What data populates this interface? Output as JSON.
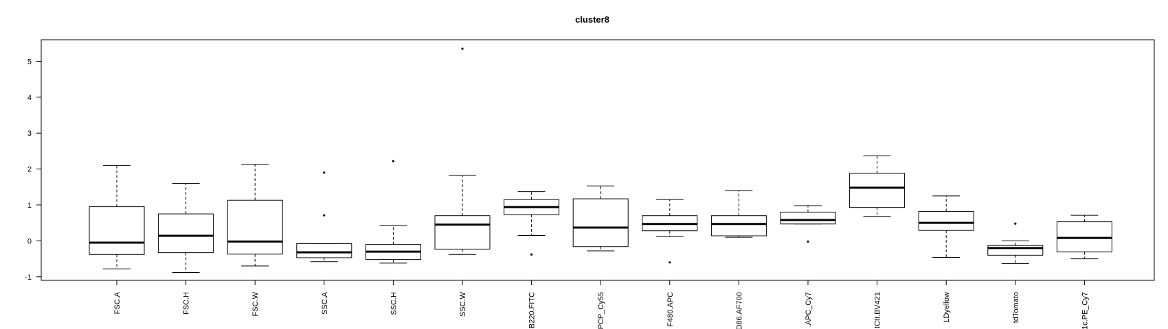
{
  "chart_data": {
    "type": "boxplot",
    "title": "cluster8",
    "xlabel": "",
    "ylabel": "",
    "ylim": [
      -1.1,
      5.6
    ],
    "yticks": [
      -1,
      0,
      1,
      2,
      3,
      4,
      5
    ],
    "grid": false,
    "categories": [
      "FSC.A",
      "FSC.H",
      "FSC.W",
      "SSC.A",
      "SSC.H",
      "SSC.W",
      "B220.FITC",
      "PCP_Cy55",
      "F480.APC",
      "D86.AF700",
      ".APC_Cy7",
      "ICII.BV421",
      "LDyellow",
      "tdTomato",
      "1c.PE_Cy7"
    ],
    "boxes": [
      {
        "whisker_low": -0.78,
        "q1": -0.38,
        "median": -0.05,
        "q3": 0.95,
        "whisker_high": 2.1,
        "outliers": []
      },
      {
        "whisker_low": -0.88,
        "q1": -0.33,
        "median": 0.14,
        "q3": 0.75,
        "whisker_high": 1.6,
        "outliers": []
      },
      {
        "whisker_low": -0.7,
        "q1": -0.37,
        "median": -0.02,
        "q3": 1.13,
        "whisker_high": 2.13,
        "outliers": []
      },
      {
        "whisker_low": -0.58,
        "q1": -0.47,
        "median": -0.32,
        "q3": -0.08,
        "whisker_high": -0.08,
        "outliers": [
          0.71,
          1.9
        ]
      },
      {
        "whisker_low": -0.62,
        "q1": -0.52,
        "median": -0.3,
        "q3": -0.1,
        "whisker_high": 0.42,
        "outliers": [
          2.22
        ]
      },
      {
        "whisker_low": -0.38,
        "q1": -0.23,
        "median": 0.45,
        "q3": 0.7,
        "whisker_high": 1.82,
        "outliers": [
          5.35
        ]
      },
      {
        "whisker_low": 0.15,
        "q1": 0.73,
        "median": 0.94,
        "q3": 1.15,
        "whisker_high": 1.37,
        "outliers": [
          -0.38
        ]
      },
      {
        "whisker_low": -0.28,
        "q1": -0.16,
        "median": 0.37,
        "q3": 1.17,
        "whisker_high": 1.53,
        "outliers": []
      },
      {
        "whisker_low": 0.12,
        "q1": 0.28,
        "median": 0.47,
        "q3": 0.7,
        "whisker_high": 1.15,
        "outliers": [
          -0.6
        ]
      },
      {
        "whisker_low": 0.1,
        "q1": 0.14,
        "median": 0.47,
        "q3": 0.7,
        "whisker_high": 1.4,
        "outliers": []
      },
      {
        "whisker_low": 0.47,
        "q1": 0.47,
        "median": 0.58,
        "q3": 0.8,
        "whisker_high": 0.98,
        "outliers": [
          -0.02
        ]
      },
      {
        "whisker_low": 0.68,
        "q1": 0.93,
        "median": 1.48,
        "q3": 1.88,
        "whisker_high": 2.37,
        "outliers": []
      },
      {
        "whisker_low": -0.46,
        "q1": 0.29,
        "median": 0.5,
        "q3": 0.82,
        "whisker_high": 1.25,
        "outliers": []
      },
      {
        "whisker_low": -0.63,
        "q1": -0.4,
        "median": -0.2,
        "q3": -0.13,
        "whisker_high": 0.0,
        "outliers": [
          0.48
        ]
      },
      {
        "whisker_low": -0.5,
        "q1": -0.31,
        "median": 0.08,
        "q3": 0.53,
        "whisker_high": 0.71,
        "outliers": []
      }
    ]
  }
}
